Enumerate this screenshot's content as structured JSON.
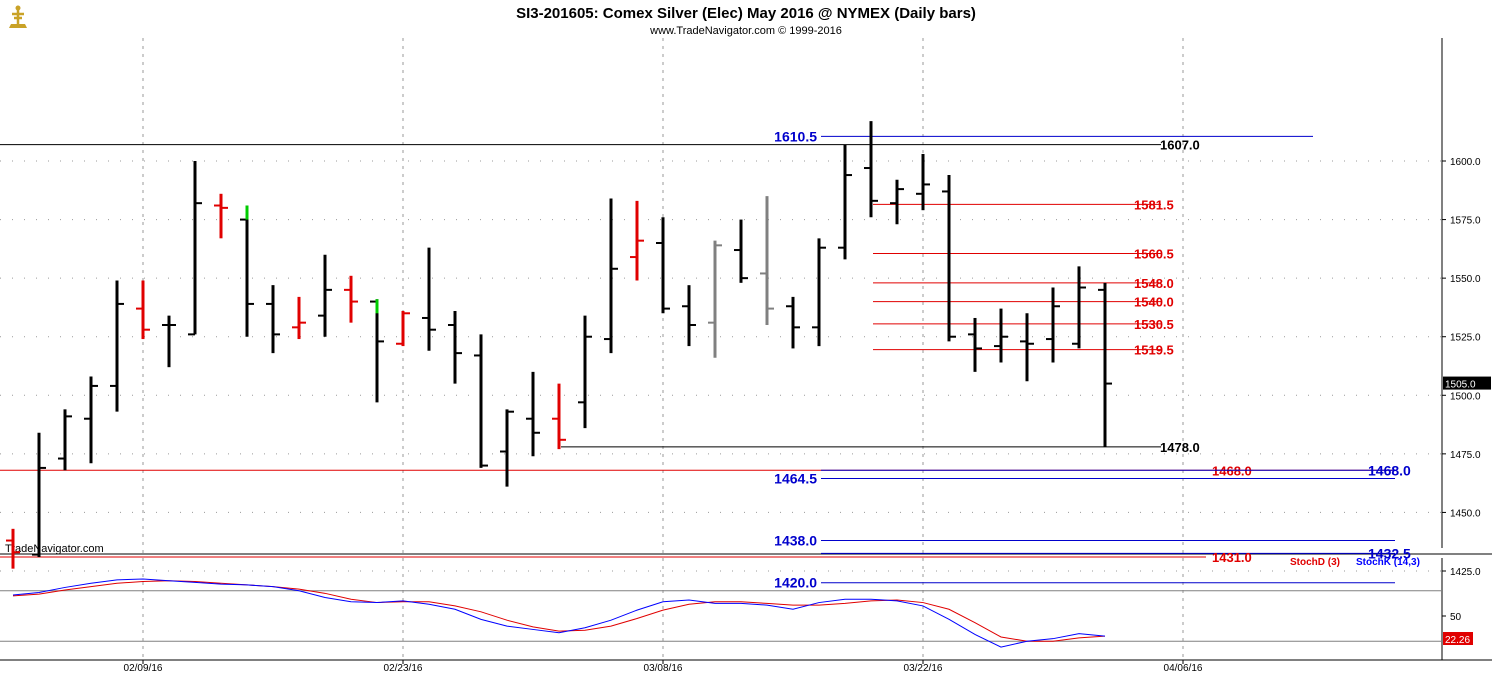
{
  "header": {
    "title": "SI3-201605:  Comex Silver (Elec) May 2016 @ NYMEX  (Daily bars)",
    "subtitle": "www.TradeNavigator.com © 1999-2016",
    "watermark": "TradeNavigator.com",
    "logo_icon": "trade-navigator-logo-icon"
  },
  "colors": {
    "up_bar": "#000000",
    "down_bar": "#e00000",
    "inside_bar": "#808080",
    "blue_level": "#0000cc",
    "red_level": "#e00000",
    "black_level": "#000000",
    "stoch_k": "#0000ff",
    "stoch_d": "#e00000",
    "green_tick": "#00cc00"
  },
  "chart_data": [
    {
      "type": "ohlc",
      "title": "SI3-201605:  Comex Silver (Elec) May 2016 @ NYMEX  (Daily bars)",
      "ylim": [
        1407,
        1617
      ],
      "y_ticks": [
        1425.0,
        1450.0,
        1475.0,
        1500.0,
        1525.0,
        1550.0,
        1575.0,
        1600.0
      ],
      "x_labels": [
        "02/09/16",
        "02/23/16",
        "03/08/16",
        "03/22/16",
        "04/06/16"
      ],
      "x_label_bar_index": [
        5,
        15,
        25,
        35,
        45
      ],
      "last_price": "1505.0",
      "grid": true,
      "bars": [
        {
          "o": 1438,
          "h": 1443,
          "l": 1426,
          "c": 1433,
          "col": "down"
        },
        {
          "o": 1432,
          "h": 1484,
          "l": 1431,
          "c": 1469,
          "col": "up"
        },
        {
          "o": 1473,
          "h": 1494,
          "l": 1468,
          "c": 1491,
          "col": "up"
        },
        {
          "o": 1490,
          "h": 1508,
          "l": 1471,
          "c": 1504,
          "col": "up"
        },
        {
          "o": 1504,
          "h": 1549,
          "l": 1493,
          "c": 1539,
          "col": "up"
        },
        {
          "o": 1537,
          "h": 1549,
          "l": 1524,
          "c": 1528,
          "col": "down"
        },
        {
          "o": 1530,
          "h": 1534,
          "l": 1512,
          "c": 1530,
          "col": "up"
        },
        {
          "o": 1526,
          "h": 1600,
          "l": 1526,
          "c": 1582,
          "col": "up"
        },
        {
          "o": 1581,
          "h": 1586,
          "l": 1567,
          "c": 1580,
          "col": "down"
        },
        {
          "o": 1575,
          "h": 1581,
          "l": 1525,
          "c": 1539,
          "col": "up"
        },
        {
          "o": 1539,
          "h": 1547,
          "l": 1518,
          "c": 1526,
          "col": "up"
        },
        {
          "o": 1529,
          "h": 1542,
          "l": 1524,
          "c": 1531,
          "col": "down"
        },
        {
          "o": 1534,
          "h": 1560,
          "l": 1525,
          "c": 1545,
          "col": "up"
        },
        {
          "o": 1545,
          "h": 1551,
          "l": 1531,
          "c": 1540,
          "col": "down"
        },
        {
          "o": 1540,
          "h": 1541,
          "l": 1497,
          "c": 1523,
          "col": "up"
        },
        {
          "o": 1522,
          "h": 1536,
          "l": 1521,
          "c": 1535,
          "col": "down"
        },
        {
          "o": 1533,
          "h": 1563,
          "l": 1519,
          "c": 1528,
          "col": "up"
        },
        {
          "o": 1530,
          "h": 1536,
          "l": 1505,
          "c": 1518,
          "col": "up"
        },
        {
          "o": 1517,
          "h": 1526,
          "l": 1469,
          "c": 1470,
          "col": "up"
        },
        {
          "o": 1476,
          "h": 1494,
          "l": 1461,
          "c": 1493,
          "col": "up"
        },
        {
          "o": 1490,
          "h": 1510,
          "l": 1474,
          "c": 1484,
          "col": "up"
        },
        {
          "o": 1490,
          "h": 1505,
          "l": 1477,
          "c": 1481,
          "col": "down"
        },
        {
          "o": 1497,
          "h": 1534,
          "l": 1486,
          "c": 1525,
          "col": "up"
        },
        {
          "o": 1524,
          "h": 1584,
          "l": 1518,
          "c": 1554,
          "col": "up"
        },
        {
          "o": 1559,
          "h": 1583,
          "l": 1549,
          "c": 1566,
          "col": "down"
        },
        {
          "o": 1565,
          "h": 1576,
          "l": 1535,
          "c": 1537,
          "col": "up"
        },
        {
          "o": 1538,
          "h": 1547,
          "l": 1521,
          "c": 1530,
          "col": "up"
        },
        {
          "o": 1531,
          "h": 1566,
          "l": 1516,
          "c": 1564,
          "col": "inside"
        },
        {
          "o": 1562,
          "h": 1575,
          "l": 1548,
          "c": 1550,
          "col": "up"
        },
        {
          "o": 1552,
          "h": 1585,
          "l": 1530,
          "c": 1537,
          "col": "inside"
        },
        {
          "o": 1538,
          "h": 1542,
          "l": 1520,
          "c": 1529,
          "col": "up"
        },
        {
          "o": 1529,
          "h": 1567,
          "l": 1521,
          "c": 1563,
          "col": "up"
        },
        {
          "o": 1563,
          "h": 1607,
          "l": 1558,
          "c": 1594,
          "col": "up"
        },
        {
          "o": 1597,
          "h": 1617,
          "l": 1576,
          "c": 1583,
          "col": "up"
        },
        {
          "o": 1582,
          "h": 1592,
          "l": 1573,
          "c": 1588,
          "col": "up"
        },
        {
          "o": 1586,
          "h": 1603,
          "l": 1579,
          "c": 1590,
          "col": "up"
        },
        {
          "o": 1587,
          "h": 1594,
          "l": 1523,
          "c": 1525,
          "col": "up"
        },
        {
          "o": 1526,
          "h": 1533,
          "l": 1510,
          "c": 1520,
          "col": "up"
        },
        {
          "o": 1521,
          "h": 1537,
          "l": 1514,
          "c": 1525,
          "col": "up"
        },
        {
          "o": 1523,
          "h": 1535,
          "l": 1506,
          "c": 1522,
          "col": "up"
        },
        {
          "o": 1524,
          "h": 1546,
          "l": 1514,
          "c": 1538,
          "col": "up"
        },
        {
          "o": 1522,
          "h": 1555,
          "l": 1520,
          "c": 1546,
          "col": "up"
        },
        {
          "o": 1545,
          "h": 1548,
          "l": 1478,
          "c": 1505,
          "col": "up"
        }
      ],
      "levels": [
        {
          "value": 1610.5,
          "label": "1610.5",
          "color": "blue",
          "label_side": "left",
          "from_bar": 31,
          "to_bar": 49
        },
        {
          "value": 1607.0,
          "label": "1607.0",
          "color": "black",
          "label_side": "right",
          "from_bar": -1,
          "to_bar": 44
        },
        {
          "value": 1581.5,
          "label": "1581.5",
          "color": "red",
          "label_side": "right",
          "from_bar": 33,
          "to_bar": 44
        },
        {
          "value": 1560.5,
          "label": "1560.5",
          "color": "red",
          "label_side": "right",
          "from_bar": 33,
          "to_bar": 44
        },
        {
          "value": 1548.0,
          "label": "1548.0",
          "color": "red",
          "label_side": "right",
          "from_bar": 33,
          "to_bar": 44
        },
        {
          "value": 1540.0,
          "label": "1540.0",
          "color": "red",
          "label_side": "right",
          "from_bar": 33,
          "to_bar": 44
        },
        {
          "value": 1530.5,
          "label": "1530.5",
          "color": "red",
          "label_side": "right",
          "from_bar": 33,
          "to_bar": 44
        },
        {
          "value": 1519.5,
          "label": "1519.5",
          "color": "red",
          "label_side": "right",
          "from_bar": 33,
          "to_bar": 44
        },
        {
          "value": 1478.0,
          "label": "1478.0",
          "color": "black",
          "label_side": "right",
          "from_bar": 21,
          "to_bar": 44
        },
        {
          "value": 1468.0,
          "label": "1468.0",
          "color": "red",
          "label_side": "end",
          "from_bar": -1,
          "to_bar": 53
        },
        {
          "value": 1468.0,
          "label": "1468.0",
          "color": "blue",
          "label_side": "far",
          "from_bar": 31,
          "to_bar": 53
        },
        {
          "value": 1464.5,
          "label": "1464.5",
          "color": "blue",
          "label_side": "left",
          "from_bar": 31,
          "to_bar": 53
        },
        {
          "value": 1438.0,
          "label": "1438.0",
          "color": "blue",
          "label_side": "left",
          "from_bar": 31,
          "to_bar": 53
        },
        {
          "value": 1432.5,
          "label": "1432.5",
          "color": "blue",
          "label_side": "far",
          "from_bar": 31,
          "to_bar": 53
        },
        {
          "value": 1431.0,
          "label": "1431.0",
          "color": "red",
          "label_side": "end",
          "from_bar": -1,
          "to_bar": 47
        },
        {
          "value": 1420.0,
          "label": "1420.0",
          "color": "blue",
          "label_side": "left",
          "from_bar": 31,
          "to_bar": 53
        }
      ]
    },
    {
      "type": "line",
      "legend": [
        "StochD (3)",
        "StochK (14,3)"
      ],
      "ylim": [
        0,
        100
      ],
      "y_ticks": [
        50
      ],
      "last_value": "22.26",
      "series": [
        {
          "name": "StochK (14,3)",
          "color": "blue",
          "values": [
            75,
            78,
            84,
            89,
            93,
            94,
            92,
            90,
            88,
            87,
            85,
            80,
            72,
            67,
            66,
            68,
            64,
            58,
            46,
            38,
            34,
            30,
            36,
            45,
            57,
            67,
            69,
            65,
            65,
            63,
            58,
            66,
            70,
            70,
            68,
            62,
            46,
            28,
            13,
            20,
            23,
            29,
            26
          ]
        },
        {
          "name": "StochD (3)",
          "color": "red",
          "values": [
            74,
            76,
            81,
            85,
            89,
            91,
            92,
            91,
            89,
            87,
            85,
            82,
            77,
            70,
            66,
            67,
            67,
            62,
            55,
            45,
            37,
            32,
            33,
            38,
            47,
            57,
            64,
            67,
            67,
            65,
            63,
            63,
            65,
            68,
            69,
            66,
            58,
            42,
            25,
            20,
            20,
            24,
            26
          ]
        }
      ]
    }
  ]
}
